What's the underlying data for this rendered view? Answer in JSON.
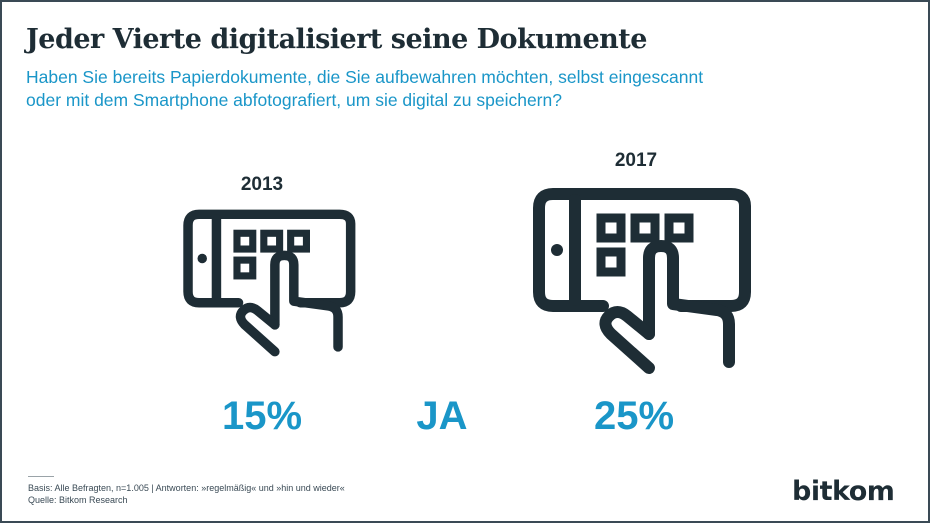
{
  "header": {
    "title": "Jeder Vierte digitalisiert seine Dokumente",
    "subtitle_line1": "Haben Sie bereits Papierdokumente, die Sie aufbewahren möchten, selbst eingescannt",
    "subtitle_line2": "oder mit dem Smartphone abfotografiert, um sie digital zu speichern?"
  },
  "chart_data": {
    "type": "pictogram",
    "categories": [
      "2013",
      "2017"
    ],
    "series": [
      {
        "name": "JA",
        "values": [
          15,
          25
        ]
      }
    ],
    "value_labels": [
      "15%",
      "25%"
    ],
    "unit": "%",
    "series_label": "JA"
  },
  "icons": [
    "tablet-touch-icon"
  ],
  "colors": {
    "accent": "#1a96c8",
    "dark": "#1e2d35"
  },
  "footer": {
    "basis": "Basis: Alle Befragten, n=1.005 | Antworten: »regelmäßig« und »hin und wieder«",
    "source": "Quelle: Bitkom Research"
  },
  "brand": {
    "logo_text": "bitkom"
  }
}
